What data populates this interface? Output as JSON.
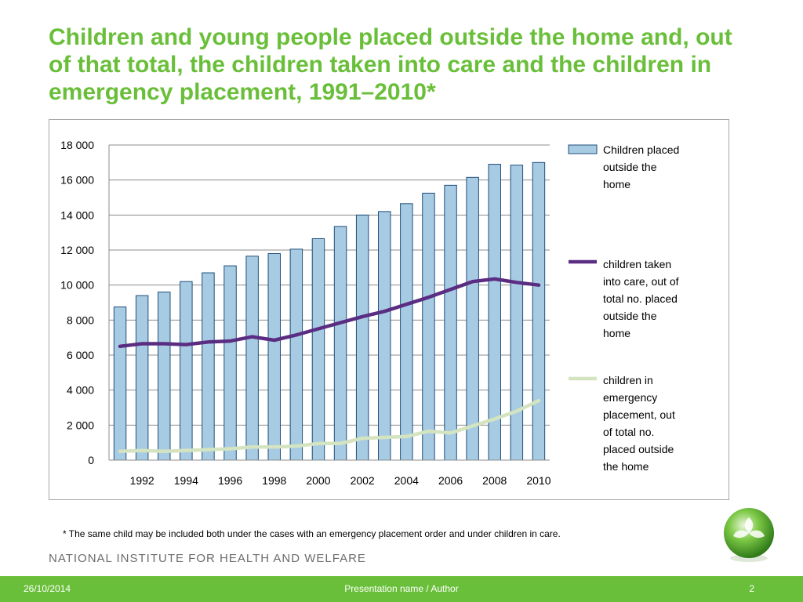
{
  "title": "Children and young people placed outside the home and, out of that total, the children taken into care and the children in emergency placement, 1991–2010*",
  "footnote": "* The same child may be included both under the cases with an emergency placement order and under children in care.",
  "institute": "NATIONAL INSTITUTE FOR HEALTH AND WELFARE",
  "footer": {
    "date": "26/10/2014",
    "presentation": "Presentation name / Author",
    "page": "2"
  },
  "colors": {
    "accent": "#6abf3a",
    "bar_fill": "#a8cbe4",
    "bar_stroke": "#1f4e79",
    "line_care": "#5b2d82",
    "line_emergency": "#d4e4c0"
  },
  "chart_data": {
    "type": "bar",
    "x": [
      1991,
      1992,
      1993,
      1994,
      1995,
      1996,
      1997,
      1998,
      1999,
      2000,
      2001,
      2002,
      2003,
      2004,
      2005,
      2006,
      2007,
      2008,
      2009,
      2010
    ],
    "x_tick_labels": [
      "1992",
      "1994",
      "1996",
      "1998",
      "2000",
      "2002",
      "2004",
      "2006",
      "2008",
      "2010"
    ],
    "ylim": [
      0,
      18000
    ],
    "y_tick_labels": [
      "0",
      "2 000",
      "4 000",
      "6 000",
      "8 000",
      "10 000",
      "12 000",
      "14 000",
      "16 000",
      "18 000"
    ],
    "grid": true,
    "legend_position": "right",
    "series": [
      {
        "name": "Children placed outside the home",
        "type": "bar",
        "values": [
          8750,
          9400,
          9600,
          10200,
          10700,
          11100,
          11650,
          11800,
          12050,
          12650,
          13350,
          14000,
          14200,
          14650,
          15250,
          15700,
          16150,
          16900,
          16850,
          17000
        ]
      },
      {
        "name": "children taken into care, out of total no. placed outside the home",
        "type": "line",
        "values": [
          6500,
          6650,
          6650,
          6600,
          6750,
          6800,
          7050,
          6850,
          7150,
          7500,
          7850,
          8200,
          8500,
          8900,
          9300,
          9750,
          10200,
          10350,
          10150,
          10000
        ]
      },
      {
        "name": "children in emergency placement, out of total no. placed outside the home",
        "type": "line",
        "values": [
          500,
          550,
          500,
          550,
          600,
          650,
          750,
          750,
          800,
          950,
          950,
          1250,
          1300,
          1350,
          1650,
          1550,
          1950,
          2350,
          2800,
          3400
        ]
      }
    ]
  }
}
